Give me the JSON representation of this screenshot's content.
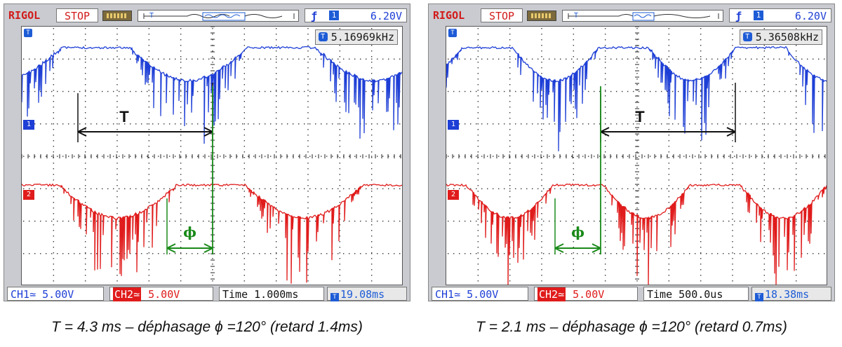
{
  "panels": [
    {
      "brand": "RIGOL",
      "status": "STOP",
      "trigger_level": "6.20V",
      "frequency": "5.16969kHz",
      "ch1_label": "CH1≃ 5.00V",
      "ch2_tag": "CH2≃",
      "ch2_value": "5.00V",
      "time_base": "Time 1.000ms",
      "delay": "19.08ms",
      "marker_T": "T",
      "marker_phi": "ϕ",
      "caption": "T = 4.3 ms – déphasage ϕ =120° (retard 1.4ms)",
      "colors": {
        "ch1": "#1e3fd6",
        "ch2": "#e01b1b",
        "marker": "#1a8a1a"
      }
    },
    {
      "brand": "RIGOL",
      "status": "STOP",
      "trigger_level": "6.20V",
      "frequency": "5.36508kHz",
      "ch1_label": "CH1≃ 5.00V",
      "ch2_tag": "CH2≃",
      "ch2_value": "5.00V",
      "time_base": "Time 500.0us",
      "delay": "18.38ms",
      "marker_T": "T",
      "marker_phi": "ϕ",
      "caption": "T = 2.1 ms – déphasage ϕ =120° (retard 0.7ms)",
      "colors": {
        "ch1": "#1e3fd6",
        "ch2": "#e01b1b",
        "marker": "#1a8a1a"
      }
    }
  ]
}
